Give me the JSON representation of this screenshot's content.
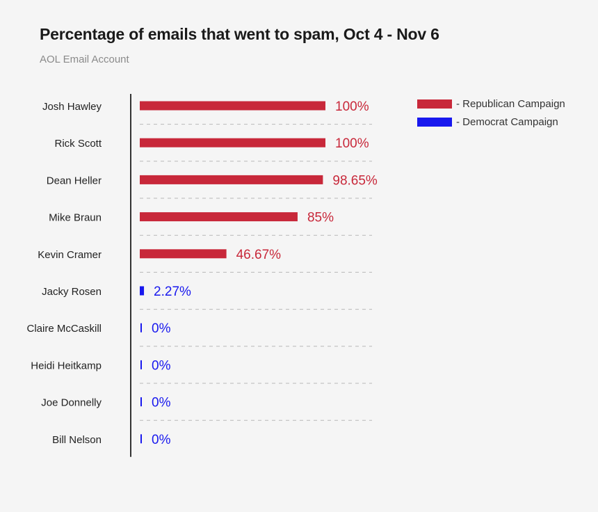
{
  "title": "Percentage of emails that went to spam, Oct 4 - Nov 6",
  "subtitle": "AOL Email Account",
  "colors": {
    "republican": "#c8283a",
    "democrat": "#1818ee",
    "axis": "#333333",
    "gridline": "#b8b8b8",
    "label": "#222222"
  },
  "legend": [
    {
      "label": "- Republican Campaign",
      "color": "#c8283a"
    },
    {
      "label": "- Democrat Campaign",
      "color": "#1818ee"
    }
  ],
  "chart_data": {
    "type": "bar",
    "orientation": "horizontal",
    "title": "Percentage of emails that went to spam, Oct 4 - Nov 6",
    "subtitle": "AOL Email Account",
    "xlim": [
      0,
      100
    ],
    "grid": true,
    "legend_position": "top-right",
    "categories": [
      "Josh Hawley",
      "Rick Scott",
      "Dean Heller",
      "Mike Braun",
      "Kevin Cramer",
      "Jacky Rosen",
      "Claire McCaskill",
      "Heidi Heitkamp",
      "Joe Donnelly",
      "Bill Nelson"
    ],
    "values": [
      100,
      100,
      98.65,
      85,
      46.67,
      2.27,
      0,
      0,
      0,
      0
    ],
    "value_labels": [
      "100%",
      "100%",
      "98.65%",
      "85%",
      "46.67%",
      "2.27%",
      "0%",
      "0%",
      "0%",
      "0%"
    ],
    "party": [
      "republican",
      "republican",
      "republican",
      "republican",
      "republican",
      "democrat",
      "democrat",
      "democrat",
      "democrat",
      "democrat"
    ],
    "series": [
      {
        "name": "- Republican Campaign",
        "color": "#c8283a"
      },
      {
        "name": "- Democrat Campaign",
        "color": "#1818ee"
      }
    ]
  }
}
